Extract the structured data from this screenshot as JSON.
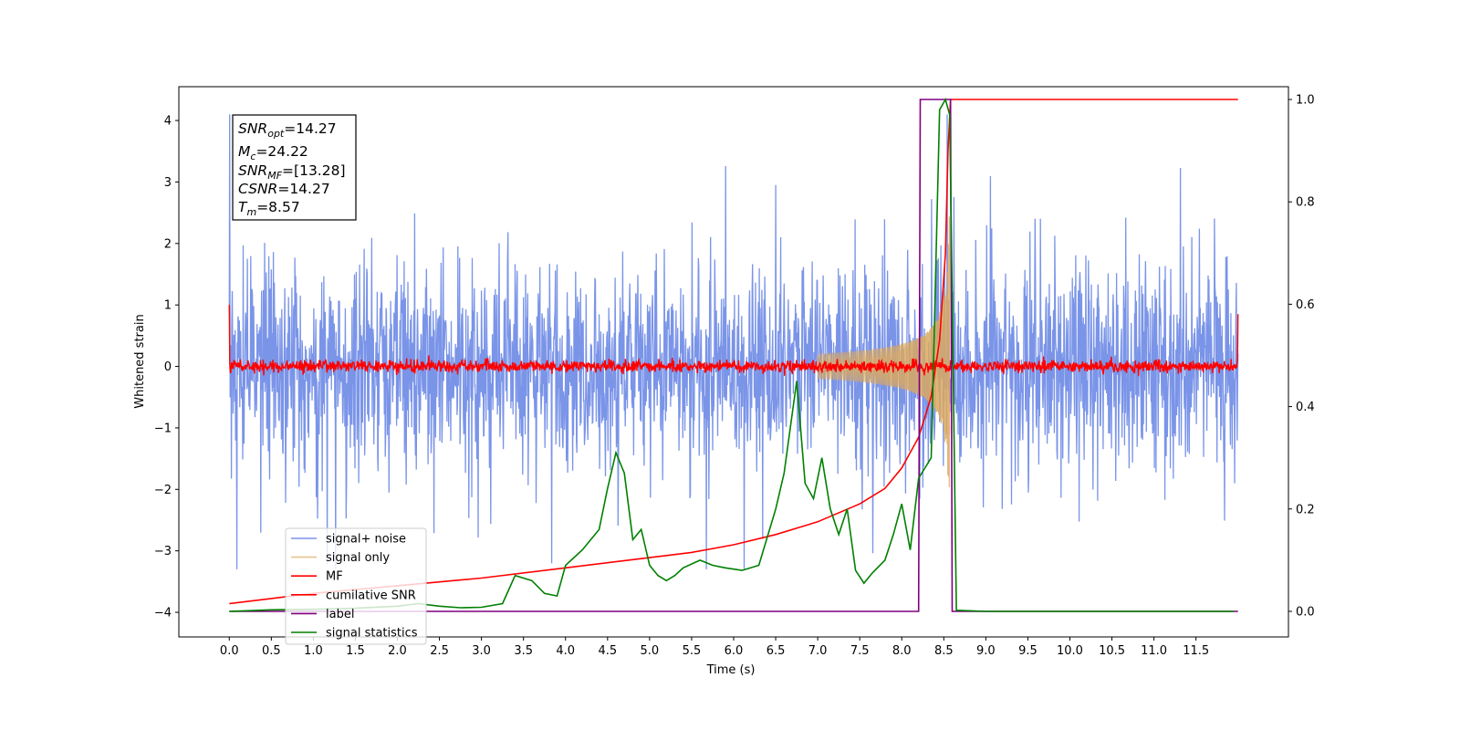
{
  "chart_data": {
    "type": "line",
    "xlabel": "Time (s)",
    "ylabel_left": "Whitened strain",
    "xlim": [
      -0.6,
      12.6
    ],
    "ylim_left": [
      -4.4,
      4.55
    ],
    "ylim_right": [
      -0.05,
      1.025
    ],
    "x_ticks": [
      0,
      0.5,
      1,
      1.5,
      2,
      2.5,
      3,
      3.5,
      4,
      4.5,
      5,
      5.5,
      6,
      6.5,
      7,
      7.5,
      8,
      8.5,
      9,
      9.5,
      10,
      10.5,
      11,
      11.5
    ],
    "x_tick_labels": [
      "0.0",
      "0.5",
      "1.0",
      "1.5",
      "2.0",
      "2.5",
      "3.0",
      "3.5",
      "4.0",
      "4.5",
      "5.0",
      "5.5",
      "6.0",
      "6.5",
      "7.0",
      "7.5",
      "8.0",
      "8.5",
      "9.0",
      "9.5",
      "10.0",
      "10.5",
      "11.0",
      "11.5"
    ],
    "y_ticks_left": [
      -4,
      -3,
      -2,
      -1,
      0,
      1,
      2,
      3,
      4
    ],
    "y_tick_labels_left": [
      "−4",
      "−3",
      "−2",
      "−1",
      "0",
      "1",
      "2",
      "3",
      "4"
    ],
    "y_ticks_right": [
      0,
      0.2,
      0.4,
      0.6,
      0.8,
      1.0
    ],
    "y_tick_labels_right": [
      "0.0",
      "0.2",
      "0.4",
      "0.6",
      "0.8",
      "1.0"
    ],
    "legend_location": "lower-left",
    "colors": {
      "signal_noise": "#7a94e8",
      "signal_only": "#d9a860",
      "mf": "#ff0000",
      "cumulative_snr": "#ff0000",
      "label": "#800080",
      "signal_statistics": "#008000"
    },
    "info_box": {
      "snr_opt_label": "SNR",
      "snr_opt_sub": "opt",
      "snr_opt_value": "=14.27",
      "mc_label": "M",
      "mc_sub": "c",
      "mc_value": "=24.22",
      "snr_mf_label": "SNR",
      "snr_mf_sub": "MF",
      "snr_mf_value": "=[13.28]",
      "csnr_label": "CSNR",
      "csnr_value": "=14.27",
      "tm_label": "T",
      "tm_sub": "m",
      "tm_value": "=8.57"
    },
    "series": [
      {
        "name": "signal+ noise",
        "axis": "left",
        "kind": "noise",
        "t_range": [
          0,
          12
        ],
        "envelope": [
          -2.8,
          4.1
        ]
      },
      {
        "name": "signal only",
        "axis": "left",
        "kind": "chirp",
        "t_range": [
          7.0,
          8.57
        ],
        "peak_amplitude": 2.8
      },
      {
        "name": "MF",
        "axis": "left",
        "kind": "noise",
        "t_range": [
          0,
          12
        ],
        "envelope": [
          -0.15,
          0.2
        ]
      },
      {
        "name": "cumilative SNR",
        "axis": "right",
        "x": [
          0,
          1,
          2,
          3,
          4,
          5,
          5.5,
          6,
          6.5,
          7,
          7.5,
          7.8,
          8.0,
          8.2,
          8.35,
          8.45,
          8.52,
          8.55,
          8.58,
          8.62,
          9,
          10,
          11,
          12
        ],
        "y": [
          0.015,
          0.035,
          0.05,
          0.065,
          0.085,
          0.105,
          0.115,
          0.13,
          0.15,
          0.175,
          0.21,
          0.24,
          0.28,
          0.34,
          0.42,
          0.53,
          0.7,
          0.9,
          1.0,
          1.0,
          1.0,
          1.0,
          1.0,
          1.0
        ]
      },
      {
        "name": "label",
        "axis": "right",
        "x": [
          0,
          8.2,
          8.22,
          8.58,
          8.6,
          12
        ],
        "y": [
          0,
          0,
          1,
          1,
          0,
          0
        ]
      },
      {
        "name": "signal statistics",
        "axis": "right",
        "x": [
          0,
          0.5,
          1.0,
          1.5,
          2.0,
          2.25,
          2.5,
          2.75,
          3.0,
          3.25,
          3.4,
          3.6,
          3.75,
          3.9,
          4.0,
          4.2,
          4.3,
          4.4,
          4.5,
          4.6,
          4.7,
          4.8,
          4.9,
          5.0,
          5.1,
          5.2,
          5.3,
          5.4,
          5.6,
          5.75,
          5.9,
          6.1,
          6.3,
          6.5,
          6.6,
          6.75,
          6.85,
          6.95,
          7.05,
          7.15,
          7.25,
          7.35,
          7.45,
          7.55,
          7.65,
          7.8,
          7.9,
          8.0,
          8.1,
          8.2,
          8.35,
          8.45,
          8.52,
          8.57,
          8.65,
          9.0,
          10.0,
          11.0,
          11.95
        ],
        "y": [
          0.0,
          0.003,
          0.004,
          0.006,
          0.01,
          0.015,
          0.01,
          0.007,
          0.008,
          0.015,
          0.07,
          0.06,
          0.035,
          0.03,
          0.09,
          0.12,
          0.14,
          0.16,
          0.24,
          0.31,
          0.27,
          0.14,
          0.16,
          0.09,
          0.07,
          0.06,
          0.07,
          0.085,
          0.1,
          0.09,
          0.085,
          0.08,
          0.09,
          0.2,
          0.27,
          0.45,
          0.25,
          0.22,
          0.3,
          0.2,
          0.15,
          0.2,
          0.08,
          0.055,
          0.075,
          0.1,
          0.15,
          0.21,
          0.12,
          0.26,
          0.3,
          0.98,
          1.0,
          0.97,
          0.002,
          0.0,
          0.0,
          0.0,
          0.0
        ]
      }
    ]
  }
}
